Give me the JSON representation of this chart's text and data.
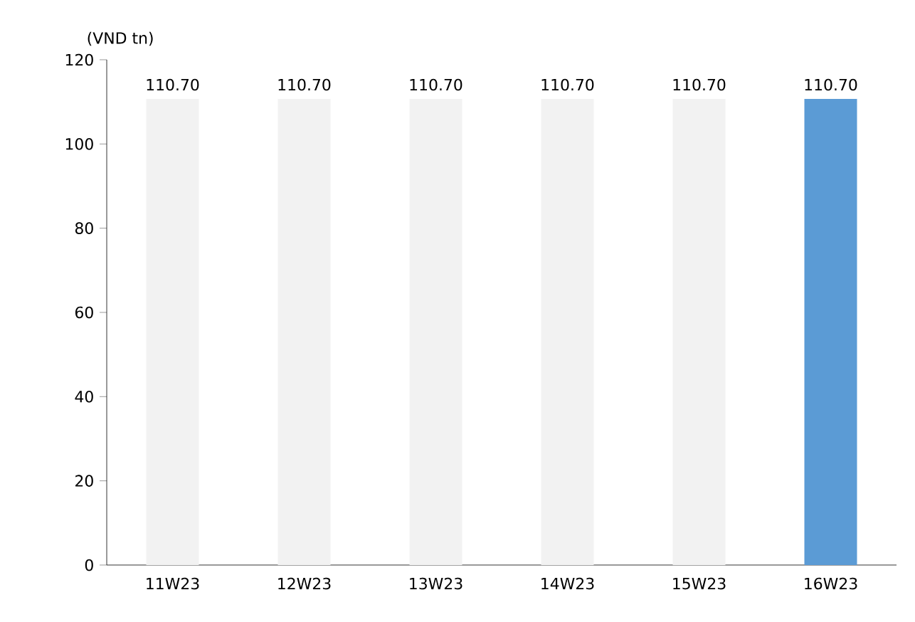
{
  "chart_data": {
    "type": "bar",
    "ylabel": "(VND tn)",
    "categories": [
      "11W23",
      "12W23",
      "13W23",
      "14W23",
      "15W23",
      "16W23"
    ],
    "values": [
      110.7,
      110.7,
      110.7,
      110.7,
      110.7,
      110.7
    ],
    "colors": [
      "#f2f2f2",
      "#f2f2f2",
      "#f2f2f2",
      "#f2f2f2",
      "#f2f2f2",
      "#5b9bd5"
    ],
    "value_labels": [
      "110.70",
      "110.70",
      "110.70",
      "110.70",
      "110.70",
      "110.70"
    ],
    "ylim": [
      0,
      120
    ],
    "yticks": [
      0,
      20,
      40,
      60,
      80,
      100,
      120
    ],
    "grid": false
  }
}
